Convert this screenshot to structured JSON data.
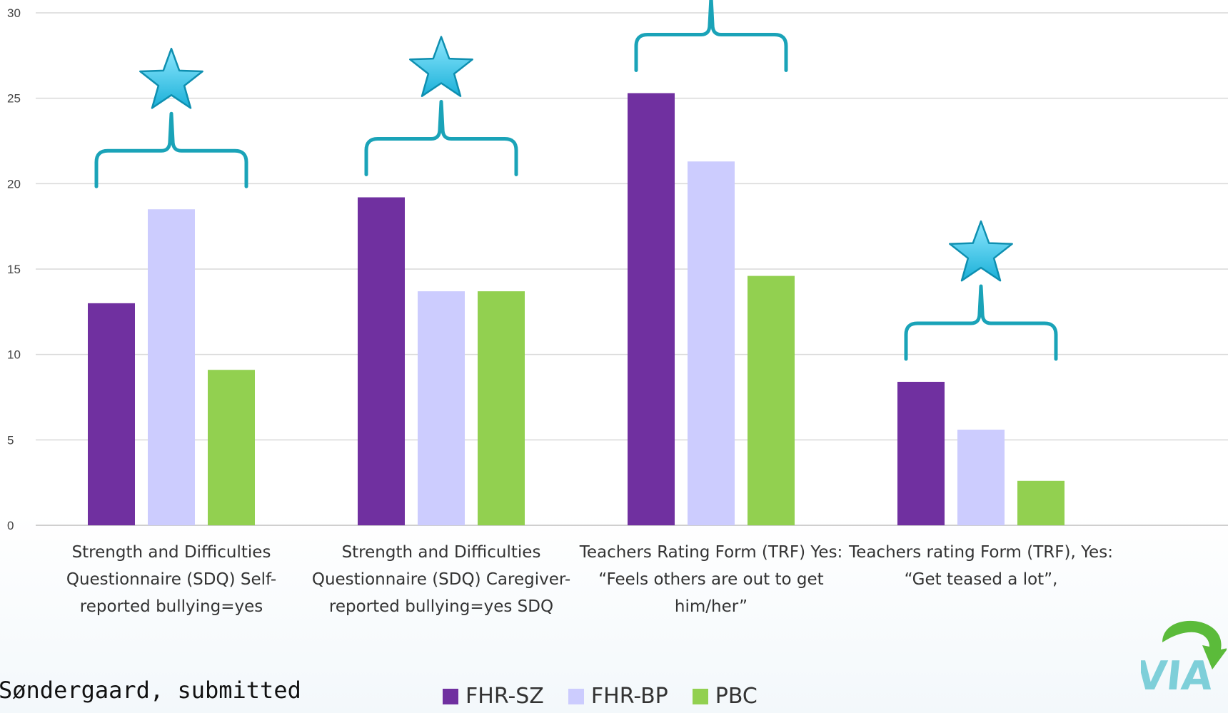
{
  "chart_data": {
    "type": "bar",
    "categories": [
      "Strength and Difficulties Questionnaire (SDQ) Self-reported bullying=yes",
      "Strength and Difficulties Questionnaire (SDQ) Caregiver-reported bullying=yes SDQ",
      "Teachers Rating Form (TRF) Yes: “Feels others are out to get him/her”",
      "Teachers rating Form (TRF), Yes: “Get teased a lot”,"
    ],
    "category_label_lines": [
      [
        "Strength and Difficulties",
        "Questionnaire (SDQ) Self-",
        "reported bullying=yes"
      ],
      [
        "Strength and Difficulties",
        "Questionnaire (SDQ) Caregiver-",
        "reported bullying=yes SDQ"
      ],
      [
        "Teachers Rating Form (TRF) Yes:",
        "“Feels others are out to get",
        "him/her”"
      ],
      [
        "Teachers rating Form (TRF), Yes:",
        "“Get teased a lot”,"
      ]
    ],
    "series": [
      {
        "name": "FHR-SZ",
        "color": "#7030a0",
        "values": [
          13.0,
          19.2,
          25.3,
          8.4
        ]
      },
      {
        "name": "FHR-BP",
        "color": "#ccccfe",
        "values": [
          18.5,
          13.7,
          21.3,
          5.6
        ]
      },
      {
        "name": "PBC",
        "color": "#92d050",
        "values": [
          9.1,
          13.7,
          14.6,
          2.6
        ]
      }
    ],
    "yticks": [
      0,
      5,
      10,
      15,
      20,
      25,
      30
    ],
    "ylim": [
      0,
      30
    ],
    "grid": true,
    "legend_position": "bottom",
    "significance_markers": [
      "star",
      "star",
      "star",
      "star"
    ],
    "annotation_color": "#1aa3b8"
  },
  "footer": {
    "citation": "Søndergaard, submitted",
    "logo_text": "VIA"
  }
}
